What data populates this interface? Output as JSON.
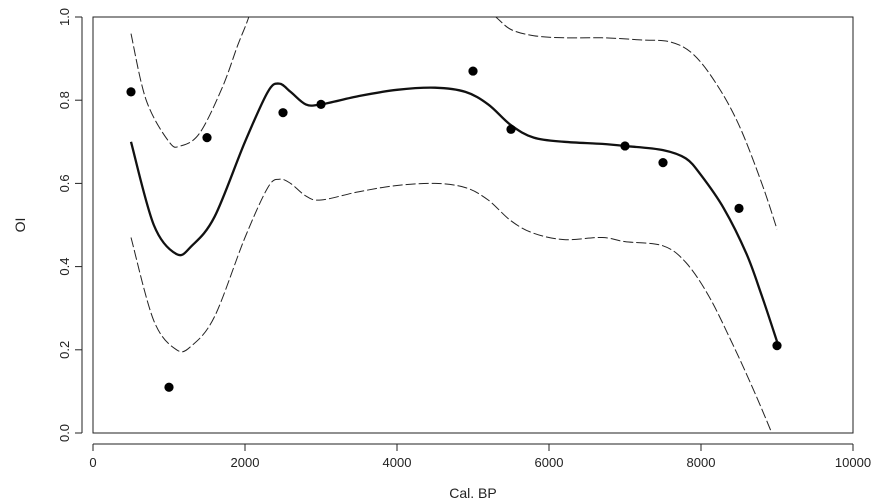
{
  "chart_data": {
    "type": "scatter",
    "title": "",
    "xlabel": "Cal. BP",
    "ylabel": "OI",
    "xlim": [
      0,
      10000
    ],
    "ylim": [
      0,
      1
    ],
    "xticks": [
      0,
      2000,
      4000,
      6000,
      8000,
      10000
    ],
    "yticks": [
      0.0,
      0.2,
      0.4,
      0.6,
      0.8,
      1.0
    ],
    "xtick_labels": [
      "0",
      "2000",
      "4000",
      "6000",
      "8000",
      "10000"
    ],
    "ytick_labels": [
      "0.0",
      "0.2",
      "0.4",
      "0.6",
      "0.8",
      "1.0"
    ],
    "grid": false,
    "points": {
      "x": [
        500,
        1000,
        1500,
        2500,
        3000,
        5000,
        5500,
        7000,
        7500,
        8500,
        9000
      ],
      "y": [
        0.82,
        0.11,
        0.71,
        0.77,
        0.79,
        0.87,
        0.73,
        0.69,
        0.65,
        0.54,
        0.21
      ]
    },
    "fit": {
      "x": [
        500,
        800,
        1100,
        1300,
        1600,
        2000,
        2300,
        2450,
        2600,
        2800,
        3000,
        3500,
        4000,
        4500,
        4900,
        5200,
        5500,
        5800,
        6200,
        6700,
        7000,
        7500,
        7800,
        8000,
        8300,
        8600,
        8800,
        9000
      ],
      "y": [
        0.7,
        0.5,
        0.43,
        0.45,
        0.52,
        0.7,
        0.82,
        0.84,
        0.82,
        0.79,
        0.79,
        0.81,
        0.825,
        0.83,
        0.82,
        0.79,
        0.74,
        0.71,
        0.7,
        0.695,
        0.69,
        0.68,
        0.66,
        0.62,
        0.54,
        0.43,
        0.33,
        0.22
      ]
    },
    "upper_band": {
      "segments": [
        {
          "x": [
            500,
            700,
            1000,
            1150,
            1400,
            1700,
            1900,
            2050,
            2150
          ],
          "y": [
            0.96,
            0.8,
            0.7,
            0.69,
            0.72,
            0.83,
            0.93,
            1.0,
            1.07
          ]
        },
        {
          "x": [
            5150,
            5300,
            5500,
            5800,
            6200,
            6700,
            7200,
            7600,
            7900,
            8200,
            8500,
            8800,
            9000
          ],
          "y": [
            1.02,
            1.0,
            0.97,
            0.955,
            0.95,
            0.95,
            0.945,
            0.94,
            0.91,
            0.84,
            0.74,
            0.6,
            0.49
          ]
        }
      ]
    },
    "lower_band": {
      "x": [
        500,
        800,
        1100,
        1300,
        1600,
        2000,
        2300,
        2450,
        2600,
        2800,
        3000,
        3500,
        4000,
        4500,
        4900,
        5200,
        5500,
        5800,
        6200,
        6700,
        7000,
        7500,
        7800,
        8100,
        8400,
        8700,
        9000
      ],
      "y": [
        0.47,
        0.27,
        0.2,
        0.21,
        0.28,
        0.47,
        0.59,
        0.61,
        0.6,
        0.57,
        0.56,
        0.58,
        0.595,
        0.6,
        0.59,
        0.56,
        0.51,
        0.48,
        0.465,
        0.47,
        0.46,
        0.45,
        0.41,
        0.33,
        0.22,
        0.1,
        -0.03
      ]
    }
  }
}
